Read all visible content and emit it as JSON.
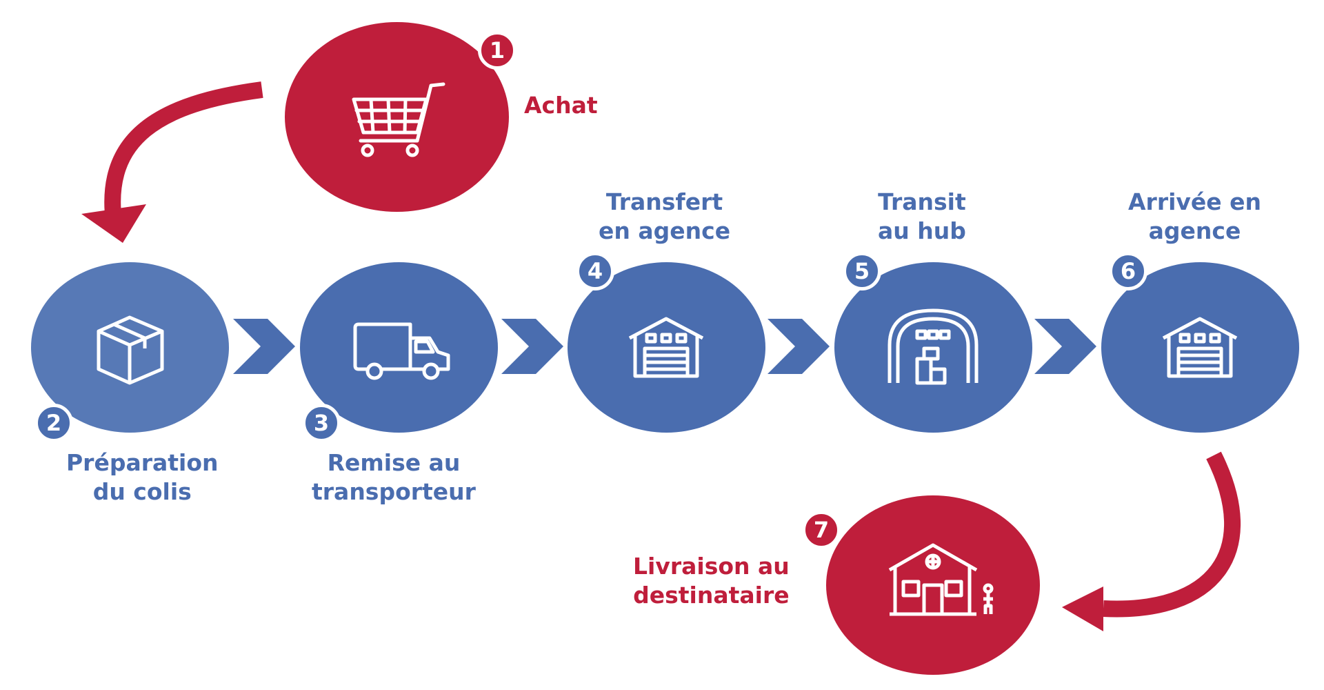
{
  "colors": {
    "blue": "#4a6daf",
    "red": "#bf1e3b",
    "white": "#ffffff"
  },
  "steps": [
    {
      "number": "1",
      "lines": [
        "Achat"
      ],
      "icon": "shopping-cart-icon",
      "color": "red"
    },
    {
      "number": "2",
      "lines": [
        "Préparation",
        "du colis"
      ],
      "icon": "package-box-icon",
      "color": "blue"
    },
    {
      "number": "3",
      "lines": [
        "Remise au",
        "transporteur"
      ],
      "icon": "delivery-truck-icon",
      "color": "blue"
    },
    {
      "number": "4",
      "lines": [
        "Transfert",
        "en agence"
      ],
      "icon": "warehouse-icon",
      "color": "blue"
    },
    {
      "number": "5",
      "lines": [
        "Transit",
        "au hub"
      ],
      "icon": "hangar-hub-icon",
      "color": "blue"
    },
    {
      "number": "6",
      "lines": [
        "Arrivée en",
        "agence"
      ],
      "icon": "warehouse-icon",
      "color": "blue"
    },
    {
      "number": "7",
      "lines": [
        "Livraison au",
        "destinataire"
      ],
      "icon": "house-recipient-icon",
      "color": "red"
    }
  ]
}
